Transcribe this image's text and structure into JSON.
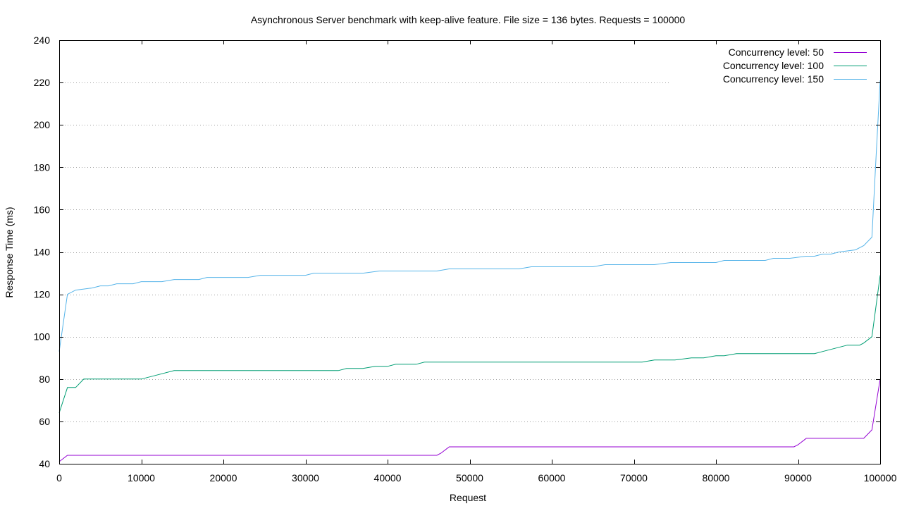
{
  "chart_data": {
    "type": "line",
    "title": "Asynchronous Server benchmark with keep-alive feature. File size = 136 bytes. Requests = 100000",
    "xlabel": "Request",
    "ylabel": "Response Time (ms)",
    "xlim": [
      0,
      100000
    ],
    "ylim": [
      40,
      240
    ],
    "x_ticks": [
      0,
      10000,
      20000,
      30000,
      40000,
      50000,
      60000,
      70000,
      80000,
      90000,
      100000
    ],
    "y_ticks": [
      40,
      60,
      80,
      100,
      120,
      140,
      160,
      180,
      200,
      220,
      240
    ],
    "grid": true,
    "legend_position": "top-right",
    "series": [
      {
        "name": "Concurrency level: 50",
        "color": "#9400d3",
        "points": [
          [
            0,
            41
          ],
          [
            1000,
            44
          ],
          [
            2000,
            44
          ],
          [
            5000,
            44
          ],
          [
            10000,
            44
          ],
          [
            20000,
            44
          ],
          [
            30000,
            44
          ],
          [
            40000,
            44
          ],
          [
            46000,
            44
          ],
          [
            46500,
            45
          ],
          [
            47500,
            48
          ],
          [
            50000,
            48
          ],
          [
            60000,
            48
          ],
          [
            70000,
            48
          ],
          [
            80000,
            48
          ],
          [
            89500,
            48
          ],
          [
            90000,
            49
          ],
          [
            91000,
            52
          ],
          [
            95000,
            52
          ],
          [
            98000,
            52
          ],
          [
            99000,
            56
          ],
          [
            100000,
            80
          ]
        ]
      },
      {
        "name": "Concurrency level: 100",
        "color": "#009e73",
        "points": [
          [
            0,
            64
          ],
          [
            1000,
            76
          ],
          [
            2000,
            76
          ],
          [
            3000,
            80
          ],
          [
            5000,
            80
          ],
          [
            10000,
            80
          ],
          [
            12000,
            82
          ],
          [
            14000,
            84
          ],
          [
            20000,
            84
          ],
          [
            30000,
            84
          ],
          [
            34000,
            84
          ],
          [
            35000,
            85
          ],
          [
            37000,
            85
          ],
          [
            38500,
            86
          ],
          [
            40000,
            86
          ],
          [
            41000,
            87
          ],
          [
            43500,
            87
          ],
          [
            44500,
            88
          ],
          [
            50000,
            88
          ],
          [
            60000,
            88
          ],
          [
            70000,
            88
          ],
          [
            71000,
            88
          ],
          [
            72500,
            89
          ],
          [
            75000,
            89
          ],
          [
            77000,
            90
          ],
          [
            78500,
            90
          ],
          [
            80000,
            91
          ],
          [
            81000,
            91
          ],
          [
            82500,
            92
          ],
          [
            85000,
            92
          ],
          [
            90000,
            92
          ],
          [
            92000,
            92
          ],
          [
            93000,
            93
          ],
          [
            95000,
            95
          ],
          [
            96000,
            96
          ],
          [
            97500,
            96
          ],
          [
            98000,
            97
          ],
          [
            99000,
            100
          ],
          [
            100000,
            129
          ]
        ]
      },
      {
        "name": "Concurrency level: 150",
        "color": "#56b4e9",
        "points": [
          [
            0,
            93
          ],
          [
            1000,
            120
          ],
          [
            2000,
            122
          ],
          [
            3000,
            122.5
          ],
          [
            4000,
            123
          ],
          [
            5000,
            124
          ],
          [
            6000,
            124
          ],
          [
            7000,
            125
          ],
          [
            9000,
            125
          ],
          [
            10000,
            126
          ],
          [
            12500,
            126
          ],
          [
            14000,
            127
          ],
          [
            17000,
            127
          ],
          [
            18000,
            128
          ],
          [
            23000,
            128
          ],
          [
            24500,
            129
          ],
          [
            30000,
            129
          ],
          [
            31000,
            130
          ],
          [
            37000,
            130
          ],
          [
            39000,
            131
          ],
          [
            46000,
            131
          ],
          [
            47500,
            132
          ],
          [
            56000,
            132
          ],
          [
            57500,
            133
          ],
          [
            65000,
            133
          ],
          [
            66500,
            134
          ],
          [
            72500,
            134
          ],
          [
            74500,
            135
          ],
          [
            80000,
            135
          ],
          [
            81000,
            136
          ],
          [
            86000,
            136
          ],
          [
            87000,
            137
          ],
          [
            89000,
            137
          ],
          [
            91000,
            138
          ],
          [
            92000,
            138
          ],
          [
            93000,
            139
          ],
          [
            94000,
            139
          ],
          [
            95000,
            140
          ],
          [
            97000,
            141
          ],
          [
            98000,
            143
          ],
          [
            99000,
            147
          ],
          [
            99500,
            185
          ],
          [
            100000,
            221
          ]
        ]
      }
    ]
  }
}
